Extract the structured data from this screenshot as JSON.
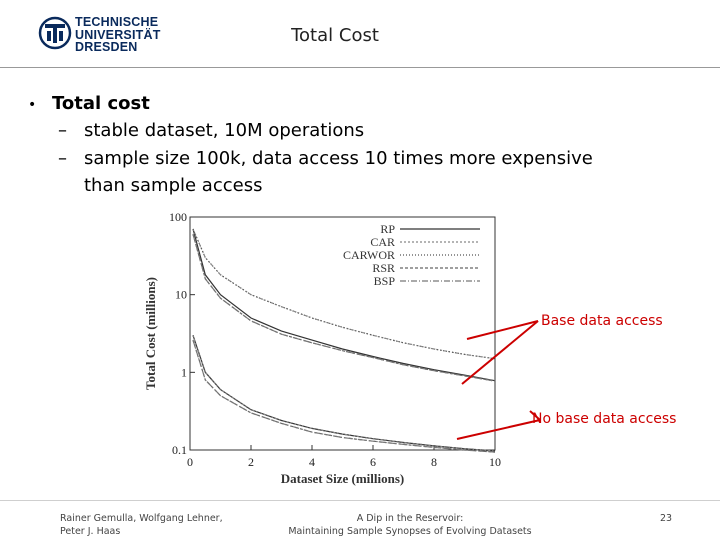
{
  "header": {
    "logo_lines": [
      "TECHNISCHE",
      "UNIVERSITÄT",
      "DRESDEN"
    ],
    "title": "Total Cost"
  },
  "bullets": {
    "main": "Total cost",
    "sub1": "stable dataset, 10M operations",
    "sub2_line1": "sample size 100k, data access 10 times more expensive",
    "sub2_line2": "than sample access"
  },
  "annotations": {
    "base": "Base data access",
    "no_base": "No base data access"
  },
  "chart_data": {
    "type": "line",
    "xlabel": "Dataset Size (millions)",
    "ylabel": "Total Cost (millions)",
    "xlim": [
      0,
      10
    ],
    "ylim": [
      0.1,
      100
    ],
    "yscale": "log",
    "xticks": [
      "0",
      "2",
      "4",
      "6",
      "8",
      "10"
    ],
    "yticks": [
      "0.1",
      "1",
      "10",
      "100"
    ],
    "legend_position": "top-right",
    "legend": [
      "RP",
      "CAR",
      "CARWOR",
      "RSR",
      "BSP"
    ],
    "groups": [
      {
        "annotation": "Base data access",
        "series": [
          {
            "name": "RP",
            "x": [
              0.1,
              0.5,
              1,
              2,
              3,
              4,
              5,
              6,
              7,
              8,
              9,
              10
            ],
            "y": [
              70,
              18,
              10,
              5,
              3.4,
              2.6,
              2.0,
              1.6,
              1.3,
              1.08,
              0.92,
              0.78
            ]
          },
          {
            "name": "CAR",
            "x": [
              0.1,
              0.5,
              1,
              2,
              3,
              4,
              5,
              6,
              7,
              8,
              9,
              10
            ],
            "y": [
              70,
              30,
              18,
              10,
              7.0,
              5.0,
              3.8,
              3.0,
              2.4,
              2.0,
              1.7,
              1.5
            ]
          },
          {
            "name": "CARWOR",
            "x": [
              0.1,
              0.5,
              1,
              2,
              3,
              4,
              5,
              6,
              7,
              8,
              9,
              10
            ],
            "y": [
              70,
              30,
              18,
              10,
              7.0,
              5.0,
              3.8,
              3.0,
              2.4,
              2.0,
              1.7,
              1.5
            ]
          },
          {
            "name": "RSR",
            "x": [
              0.1,
              0.5,
              1,
              2,
              3,
              4,
              5,
              6,
              7,
              8,
              9,
              10
            ],
            "y": [
              60,
              16,
              9,
              4.6,
              3.1,
              2.4,
              1.9,
              1.55,
              1.25,
              1.05,
              0.9,
              0.77
            ]
          },
          {
            "name": "BSP",
            "x": [
              0.1,
              0.5,
              1,
              2,
              3,
              4,
              5,
              6,
              7,
              8,
              9,
              10
            ],
            "y": [
              60,
              16,
              9,
              4.6,
              3.1,
              2.4,
              1.9,
              1.55,
              1.25,
              1.05,
              0.9,
              0.77
            ]
          }
        ]
      },
      {
        "annotation": "No base data access",
        "series": [
          {
            "name": "RP",
            "x": [
              0.1,
              0.5,
              1,
              2,
              3,
              4,
              5,
              6,
              7,
              8,
              9,
              10
            ],
            "y": [
              3.0,
              1.0,
              0.6,
              0.33,
              0.24,
              0.19,
              0.16,
              0.14,
              0.125,
              0.113,
              0.104,
              0.097
            ]
          },
          {
            "name": "CAR",
            "x": [
              0.1,
              0.5,
              1,
              2,
              3,
              4,
              5,
              6,
              7,
              8,
              9,
              10
            ],
            "y": [
              3.0,
              1.0,
              0.6,
              0.33,
              0.24,
              0.19,
              0.16,
              0.14,
              0.125,
              0.113,
              0.104,
              0.097
            ]
          },
          {
            "name": "CARWOR",
            "x": [
              0.1,
              0.5,
              1,
              2,
              3,
              4,
              5,
              6,
              7,
              8,
              9,
              10
            ],
            "y": [
              3.0,
              1.0,
              0.6,
              0.33,
              0.24,
              0.19,
              0.16,
              0.14,
              0.125,
              0.113,
              0.104,
              0.097
            ]
          },
          {
            "name": "RSR",
            "x": [
              0.1,
              0.5,
              1,
              2,
              3,
              4,
              5,
              6,
              7,
              8,
              9,
              10
            ],
            "y": [
              2.6,
              0.8,
              0.5,
              0.3,
              0.22,
              0.17,
              0.145,
              0.13,
              0.118,
              0.108,
              0.1,
              0.094
            ]
          },
          {
            "name": "BSP",
            "x": [
              0.1,
              0.5,
              1,
              2,
              3,
              4,
              5,
              6,
              7,
              8,
              9,
              10
            ],
            "y": [
              2.6,
              0.8,
              0.5,
              0.3,
              0.22,
              0.17,
              0.145,
              0.13,
              0.118,
              0.108,
              0.1,
              0.094
            ]
          }
        ]
      }
    ]
  },
  "footer": {
    "authors_line1": "Rainer Gemulla, Wolfgang Lehner,",
    "authors_line2": "Peter J. Haas",
    "title_line1": "A Dip in the Reservoir:",
    "title_line2": "Maintaining Sample Synopses of Evolving Datasets",
    "page_number": "23"
  }
}
